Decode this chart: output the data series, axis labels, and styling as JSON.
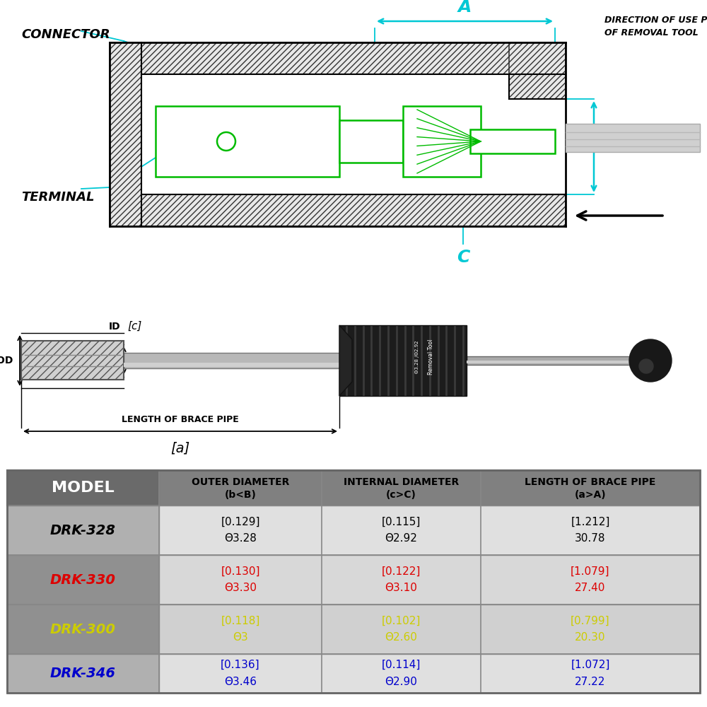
{
  "bg_color": "#ffffff",
  "cyan": "#00c8d4",
  "green": "#00bb00",
  "black": "#000000",
  "models": [
    "DRK-328",
    "DRK-330",
    "DRK-300",
    "DRK-346"
  ],
  "model_colors": [
    "#000000",
    "#dd0000",
    "#cccc00",
    "#0000cc"
  ],
  "outer_diameter_line1": [
    "[0.129]",
    "[0.130]",
    "[0.118]",
    "[0.136]"
  ],
  "outer_diameter_line2": [
    "Θ3.28",
    "Θ3.30",
    "Θ3",
    "Θ3.46"
  ],
  "internal_diameter_line1": [
    "[0.115]",
    "[0.122]",
    "[0.102]",
    "[0.114]"
  ],
  "internal_diameter_line2": [
    "Θ2.92",
    "Θ3.10",
    "Θ2.60",
    "Θ2.90"
  ],
  "length_brace_line1": [
    "[1.212]",
    "[1.079]",
    "[0.799]",
    "[1.072]"
  ],
  "length_brace_line2": [
    "30.78",
    "27.40",
    "20.30",
    "27.22"
  ],
  "data_colors": [
    "#000000",
    "#dd0000",
    "#cccc00",
    "#0000cc"
  ],
  "col_headers": [
    "MODEL",
    "OUTER DIAMETER\n(b<B)",
    "INTERNAL DIAMETER\n(c>C)",
    "LENGTH OF BRACE PIPE\n(a>A)"
  ],
  "table_header_bg": "#808080",
  "model_col_bg": "#909090",
  "data_col_bg_even": "#d4d4d4",
  "data_col_bg_odd": "#c8c8c8"
}
